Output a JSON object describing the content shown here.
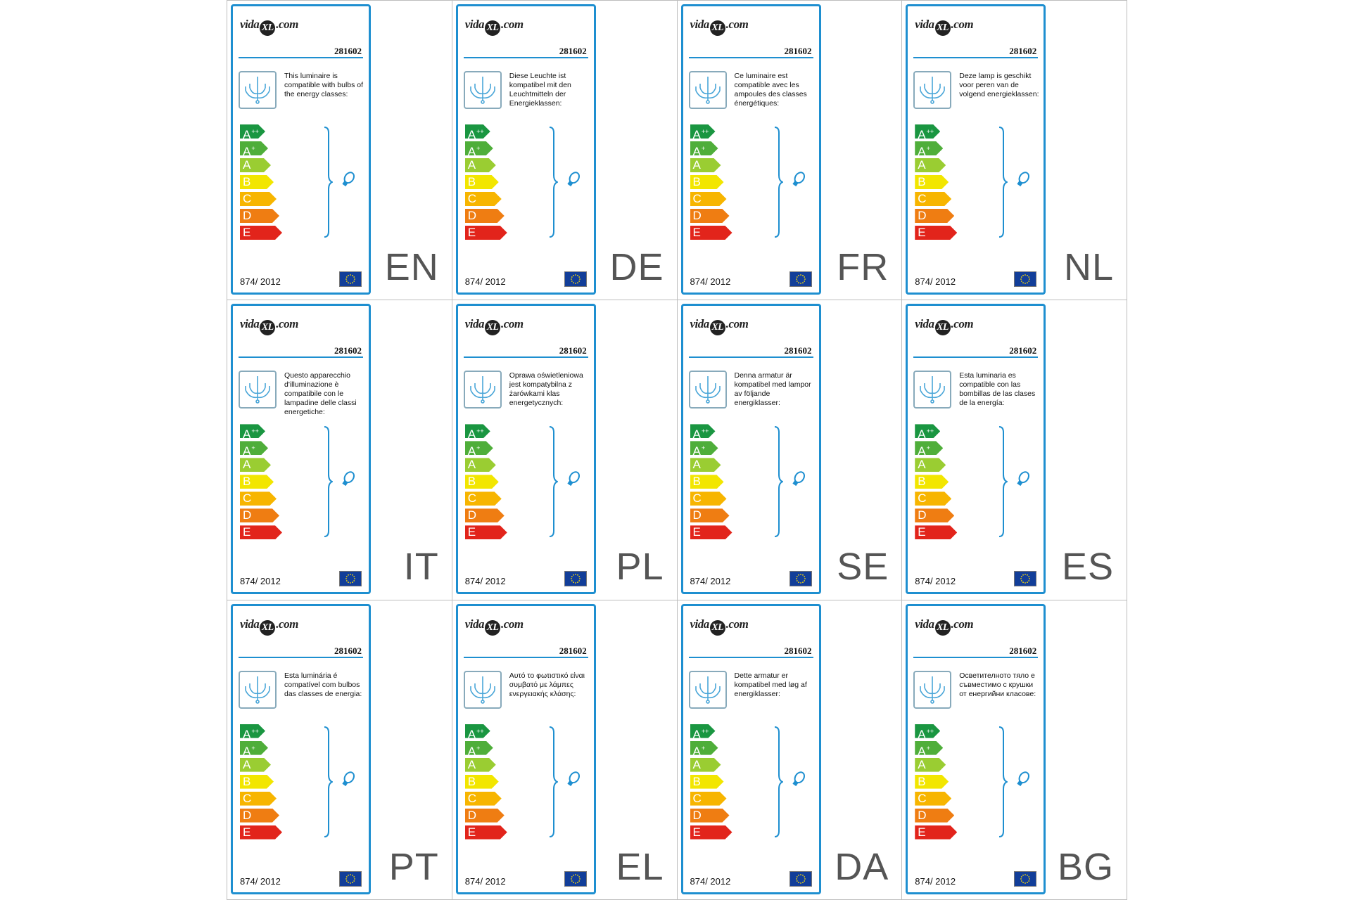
{
  "logo": {
    "prefix": "vida",
    "mark": "XL",
    "suffix": ".com"
  },
  "product_code": "281602",
  "regulation": "874/ 2012",
  "energy_classes": [
    {
      "letter": "A",
      "sup": "++",
      "color": "#1a9641"
    },
    {
      "letter": "A",
      "sup": "+",
      "color": "#4fae3a"
    },
    {
      "letter": "A",
      "sup": "",
      "color": "#9acd32"
    },
    {
      "letter": "B",
      "sup": "",
      "color": "#f2e600"
    },
    {
      "letter": "C",
      "sup": "",
      "color": "#f7b500"
    },
    {
      "letter": "D",
      "sup": "",
      "color": "#ef7d12"
    },
    {
      "letter": "E",
      "sup": "",
      "color": "#e2241b"
    }
  ],
  "accent_color": "#1e8fd0",
  "icons": {
    "lamp": "chandelier-icon",
    "bulb": "bulb-icon",
    "flag": "eu-flag-icon"
  },
  "labels": [
    {
      "lang": "EN",
      "text": "This luminaire is compatible with bulbs of the energy classes:"
    },
    {
      "lang": "DE",
      "text": "Diese Leuchte ist kompatibel mit den Leuchtmitteln der Energieklassen:"
    },
    {
      "lang": "FR",
      "text": "Ce luminaire est compatible avec les ampoules des classes énergétiques:"
    },
    {
      "lang": "NL",
      "text": "Deze lamp is geschikt voor peren van de volgend energieklassen:"
    },
    {
      "lang": "IT",
      "text": "Questo apparecchio d'illuminazione è compatibile con le lampadine delle classi energetiche:"
    },
    {
      "lang": "PL",
      "text": "Oprawa oświetleniowa jest kompatybilna z żarówkami klas energetycznych:"
    },
    {
      "lang": "SE",
      "text": "Denna armatur är kompatibel med lampor av följande energiklasser:"
    },
    {
      "lang": "ES",
      "text": "Esta luminaria es compatible con las bombillas de las clases de la energía:"
    },
    {
      "lang": "PT",
      "text": "Esta luminária é compatível com bulbos das classes de energia:"
    },
    {
      "lang": "EL",
      "text": "Αυτό το φωτιστικό είναι συμβατό με λάμπες ενεργειακής κλάσης:"
    },
    {
      "lang": "DA",
      "text": "Dette armatur er kompatibel med løg af energiklasser:"
    },
    {
      "lang": "BG",
      "text": "Осветителното тяло е съвместимо с крушки от енергийни класове:"
    }
  ]
}
